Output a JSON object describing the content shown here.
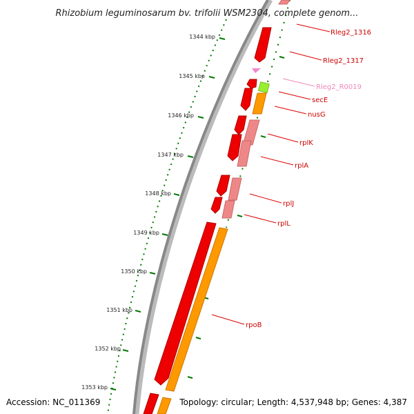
{
  "title": "Rhizobium leguminosarum bv. trifolii WSM2304, complete genom...",
  "ticks": [
    "1344 kbp",
    "1345 kbp",
    "1346 kbp",
    "1347 kbp",
    "1348 kbp",
    "1349 kbp",
    "1350 kbp",
    "1351 kbp",
    "1352 kbp",
    "1353 kbp"
  ],
  "genes": [
    {
      "label": "Rleg2_1316",
      "color": "#cc0000"
    },
    {
      "label": "Rleg2_1317",
      "color": "#cc0000"
    },
    {
      "label": "Rleg2_R0019",
      "color": "#ee88bb"
    },
    {
      "label": "secE",
      "color": "#cc0000"
    },
    {
      "label": "nusG",
      "color": "#cc0000"
    },
    {
      "label": "rplK",
      "color": "#cc0000"
    },
    {
      "label": "rplA",
      "color": "#cc0000"
    },
    {
      "label": "rplJ",
      "color": "#cc0000"
    },
    {
      "label": "rplL",
      "color": "#cc0000"
    },
    {
      "label": "rpoB",
      "color": "#cc0000"
    }
  ],
  "footer": {
    "accession": "Accession: NC_011369",
    "info": "Topology: circular; Length: 4,537,948 bp; Genes: 4,387"
  },
  "colors": {
    "cds_forward": "#ee0000",
    "cds_light": "#ee8888",
    "trna": "#ee88cc",
    "orange": "#ff9900",
    "green_feature": "#99ee33",
    "backbone": "#888888",
    "ticks": "#007700"
  }
}
